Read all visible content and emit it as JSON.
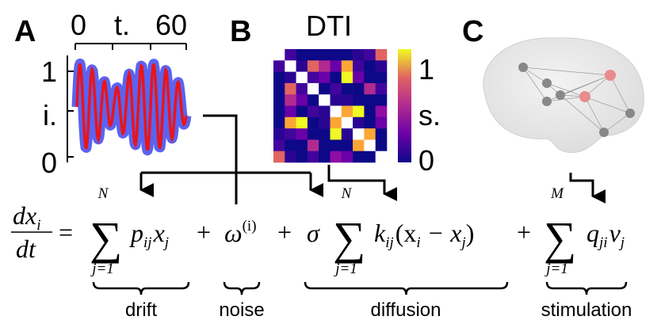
{
  "panels": {
    "a": {
      "label": "A",
      "x_ticks": [
        "0",
        "t.",
        "60"
      ],
      "y_ticks": [
        "1",
        "i.",
        "0"
      ]
    },
    "b": {
      "label": "B",
      "title": "DTI",
      "colorbar_ticks": [
        "1",
        "s.",
        "0"
      ]
    },
    "c": {
      "label": "C"
    }
  },
  "equation": {
    "tokens": [
      "dx",
      "i",
      "dt",
      "=",
      "∑",
      "N",
      "j=1",
      "p",
      "ij",
      "x",
      "j",
      "+",
      "ω",
      "(i)",
      "+",
      "σ",
      "∑",
      "N",
      "j=1",
      "k",
      "ij",
      "(x",
      "i",
      " − x",
      "j",
      ")",
      "+",
      "∑",
      "M",
      "j=1",
      "q",
      "ji",
      "v",
      "j"
    ]
  },
  "braces": [
    "drift",
    "noise",
    "diffusion",
    "stimulation"
  ]
}
